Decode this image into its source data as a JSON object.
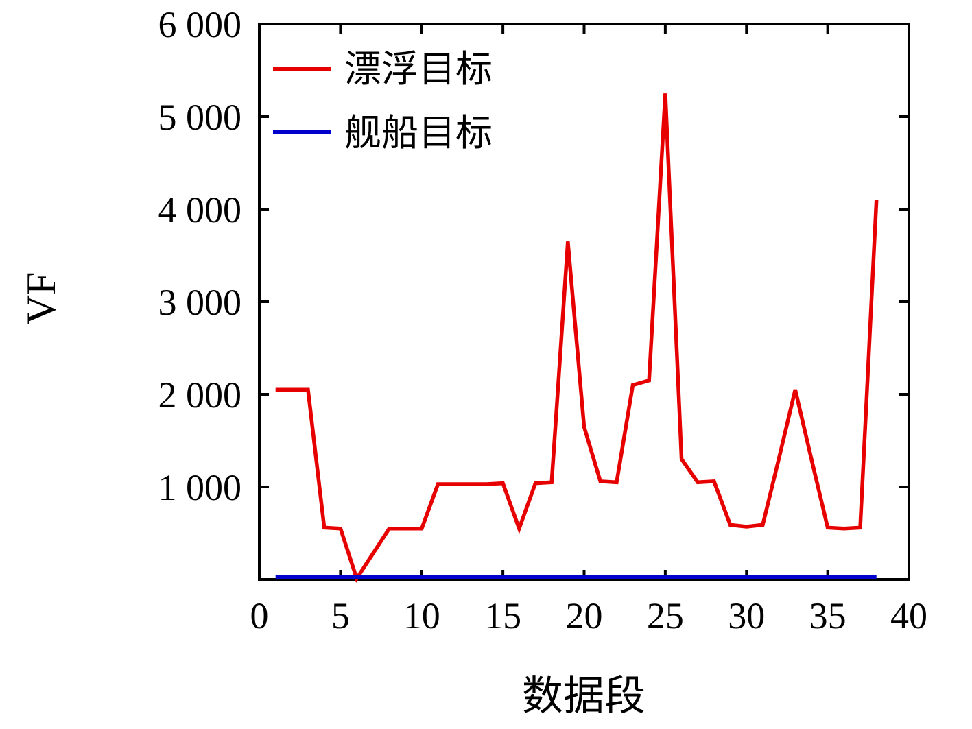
{
  "chart_data": {
    "type": "line",
    "title": "",
    "xlabel": "数据段",
    "ylabel": "VF",
    "xlim": [
      0,
      40
    ],
    "ylim": [
      0,
      6000
    ],
    "grid": false,
    "legend_position": "top-left-inside",
    "xticks": [
      0,
      5,
      10,
      15,
      20,
      25,
      30,
      35,
      40
    ],
    "xtick_labels": [
      "0",
      "5",
      "10",
      "15",
      "20",
      "25",
      "30",
      "35",
      "40"
    ],
    "yticks": [
      1000,
      2000,
      3000,
      4000,
      5000,
      6000
    ],
    "ytick_labels": [
      "1 000",
      "2 000",
      "3 000",
      "4 000",
      "5 000",
      "6 000"
    ],
    "axis_color": "#000000",
    "background_color": "#ffffff",
    "x": [
      1,
      2,
      3,
      4,
      5,
      6,
      7,
      8,
      9,
      10,
      11,
      12,
      13,
      14,
      15,
      16,
      17,
      18,
      19,
      20,
      21,
      22,
      23,
      24,
      25,
      26,
      27,
      28,
      29,
      30,
      31,
      32,
      33,
      34,
      35,
      36,
      37,
      38
    ],
    "series": [
      {
        "name": "漂浮目标",
        "color": "#e60000",
        "values": [
          2050,
          2050,
          2050,
          560,
          550,
          10,
          280,
          550,
          550,
          550,
          1030,
          1030,
          1030,
          1030,
          1040,
          550,
          1040,
          1050,
          3650,
          1650,
          1060,
          1050,
          2100,
          2150,
          5250,
          1300,
          1050,
          1060,
          590,
          570,
          590,
          1310,
          2050,
          1300,
          560,
          550,
          560,
          4100
        ]
      },
      {
        "name": "舰船目标",
        "color": "#0000cc",
        "values": [
          25,
          25,
          25,
          25,
          25,
          25,
          25,
          25,
          25,
          25,
          25,
          25,
          25,
          25,
          25,
          25,
          25,
          25,
          25,
          25,
          25,
          25,
          25,
          25,
          25,
          25,
          25,
          25,
          25,
          25,
          25,
          25,
          25,
          25,
          25,
          25,
          25,
          25
        ]
      }
    ]
  }
}
